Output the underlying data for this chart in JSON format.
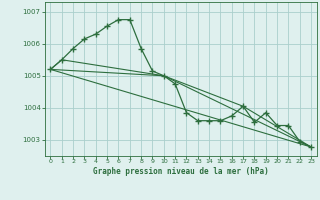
{
  "bg_color": "#dff0ee",
  "plot_bg_color": "#dff0ee",
  "grid_color": "#aacfcc",
  "line_color": "#2d6e3e",
  "xlabel": "Graphe pression niveau de la mer (hPa)",
  "ylim": [
    1002.5,
    1007.3
  ],
  "xlim": [
    -0.5,
    23.5
  ],
  "yticks": [
    1003,
    1004,
    1005,
    1006,
    1007
  ],
  "xticks": [
    0,
    1,
    2,
    3,
    4,
    5,
    6,
    7,
    8,
    9,
    10,
    11,
    12,
    13,
    14,
    15,
    16,
    17,
    18,
    19,
    20,
    21,
    22,
    23
  ],
  "series_main": {
    "x": [
      0,
      1,
      2,
      3,
      4,
      5,
      6,
      7,
      8,
      9,
      10,
      11,
      12,
      13,
      14,
      15,
      16,
      17,
      18,
      19,
      20,
      21,
      22,
      23
    ],
    "y": [
      1005.2,
      1005.5,
      1005.85,
      1006.15,
      1006.3,
      1006.55,
      1006.75,
      1006.75,
      1005.85,
      1005.15,
      1005.0,
      1004.75,
      1003.85,
      1003.6,
      1003.6,
      1003.6,
      1003.75,
      1004.05,
      1003.55,
      1003.85,
      1003.45,
      1003.45,
      1002.95,
      1002.78
    ]
  },
  "series_lines": [
    {
      "x": [
        0,
        23
      ],
      "y": [
        1005.2,
        1002.78
      ]
    },
    {
      "x": [
        0,
        1,
        10,
        23
      ],
      "y": [
        1005.2,
        1005.5,
        1005.0,
        1002.78
      ]
    },
    {
      "x": [
        0,
        10,
        17,
        23
      ],
      "y": [
        1005.2,
        1005.0,
        1004.05,
        1002.78
      ]
    }
  ]
}
